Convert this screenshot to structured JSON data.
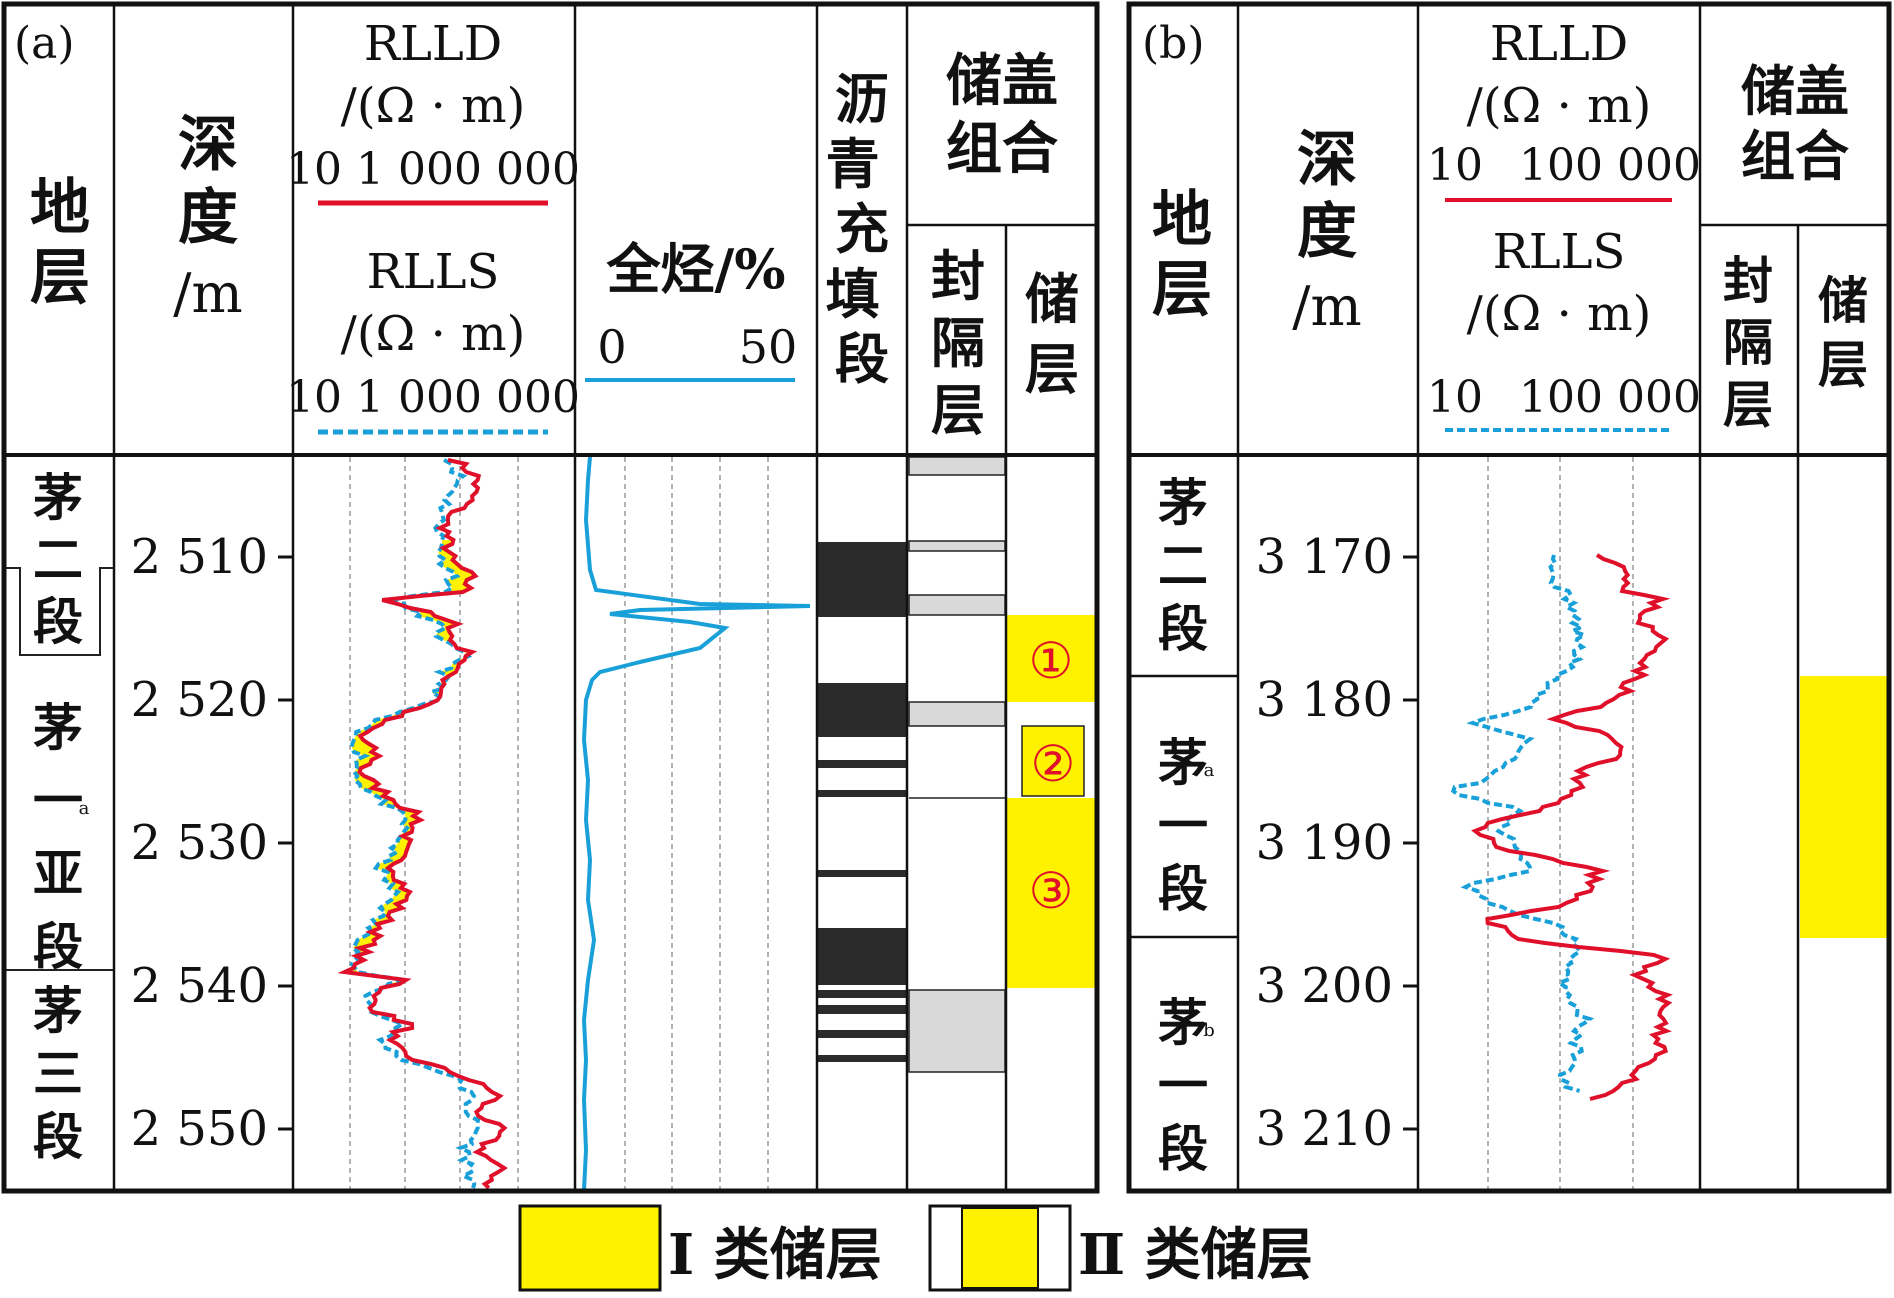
{
  "panel_a": {
    "label": "(a)",
    "headers": {
      "strata": "地层",
      "depth": "深度",
      "depth_unit": "/m",
      "rlld_title": "RLLD",
      "rlld_unit": "/(Ω · m)",
      "rlld_range": "10 1 000 000",
      "rlls_title": "RLLS",
      "rlls_unit": "/(Ω · m)",
      "rlls_range": "10 1 000 000",
      "gas_title": "全烃/%",
      "gas_min": "0",
      "gas_max": "50",
      "asphalt": "沥青充填段",
      "combo": "储盖组合",
      "seal": "封隔层",
      "reservoir": "储层"
    },
    "strata": [
      {
        "name": "茅二段"
      },
      {
        "name": "茅一",
        "sup": "a",
        "tail": "亚段"
      },
      {
        "name": "茅三段"
      }
    ],
    "depth_ticks": [
      "2 510",
      "2 520",
      "2 530",
      "2 540",
      "2 550"
    ],
    "reservoir_labels": [
      "①",
      "②",
      "③"
    ]
  },
  "panel_b": {
    "label": "(b)",
    "headers": {
      "strata": "地层",
      "depth": "深度",
      "depth_unit": "/m",
      "rlld_title": "RLLD",
      "rlld_unit": "/(Ω · m)",
      "rlld_range_min": "10",
      "rlld_range_max": "100 000",
      "rlls_title": "RLLS",
      "rlls_unit": "/(Ω · m)",
      "rlls_range_min": "10",
      "rlls_range_max": "100 000",
      "combo": "储盖组合",
      "seal": "封隔层",
      "reservoir": "储层"
    },
    "strata": [
      {
        "name": "茅二段"
      },
      {
        "name": "茅",
        "sup": "a",
        "tail": "一段"
      },
      {
        "name": "茅",
        "sup": "b",
        "tail": "一段"
      }
    ],
    "depth_ticks": [
      "3 170",
      "3 180",
      "3 190",
      "3 200",
      "3 210"
    ]
  },
  "legend": {
    "type1": "Ⅰ 类储层",
    "type2": "Ⅱ 类储层"
  },
  "colors": {
    "rlld": "#e0102a",
    "rlls": "#1aa0d8",
    "gas": "#1aa0d8",
    "reservoir_fill": "#fff200",
    "seal_fill": "#d9d9d9",
    "asphalt_fill": "#2b2b2b",
    "circled_text": "#e0102a"
  }
}
